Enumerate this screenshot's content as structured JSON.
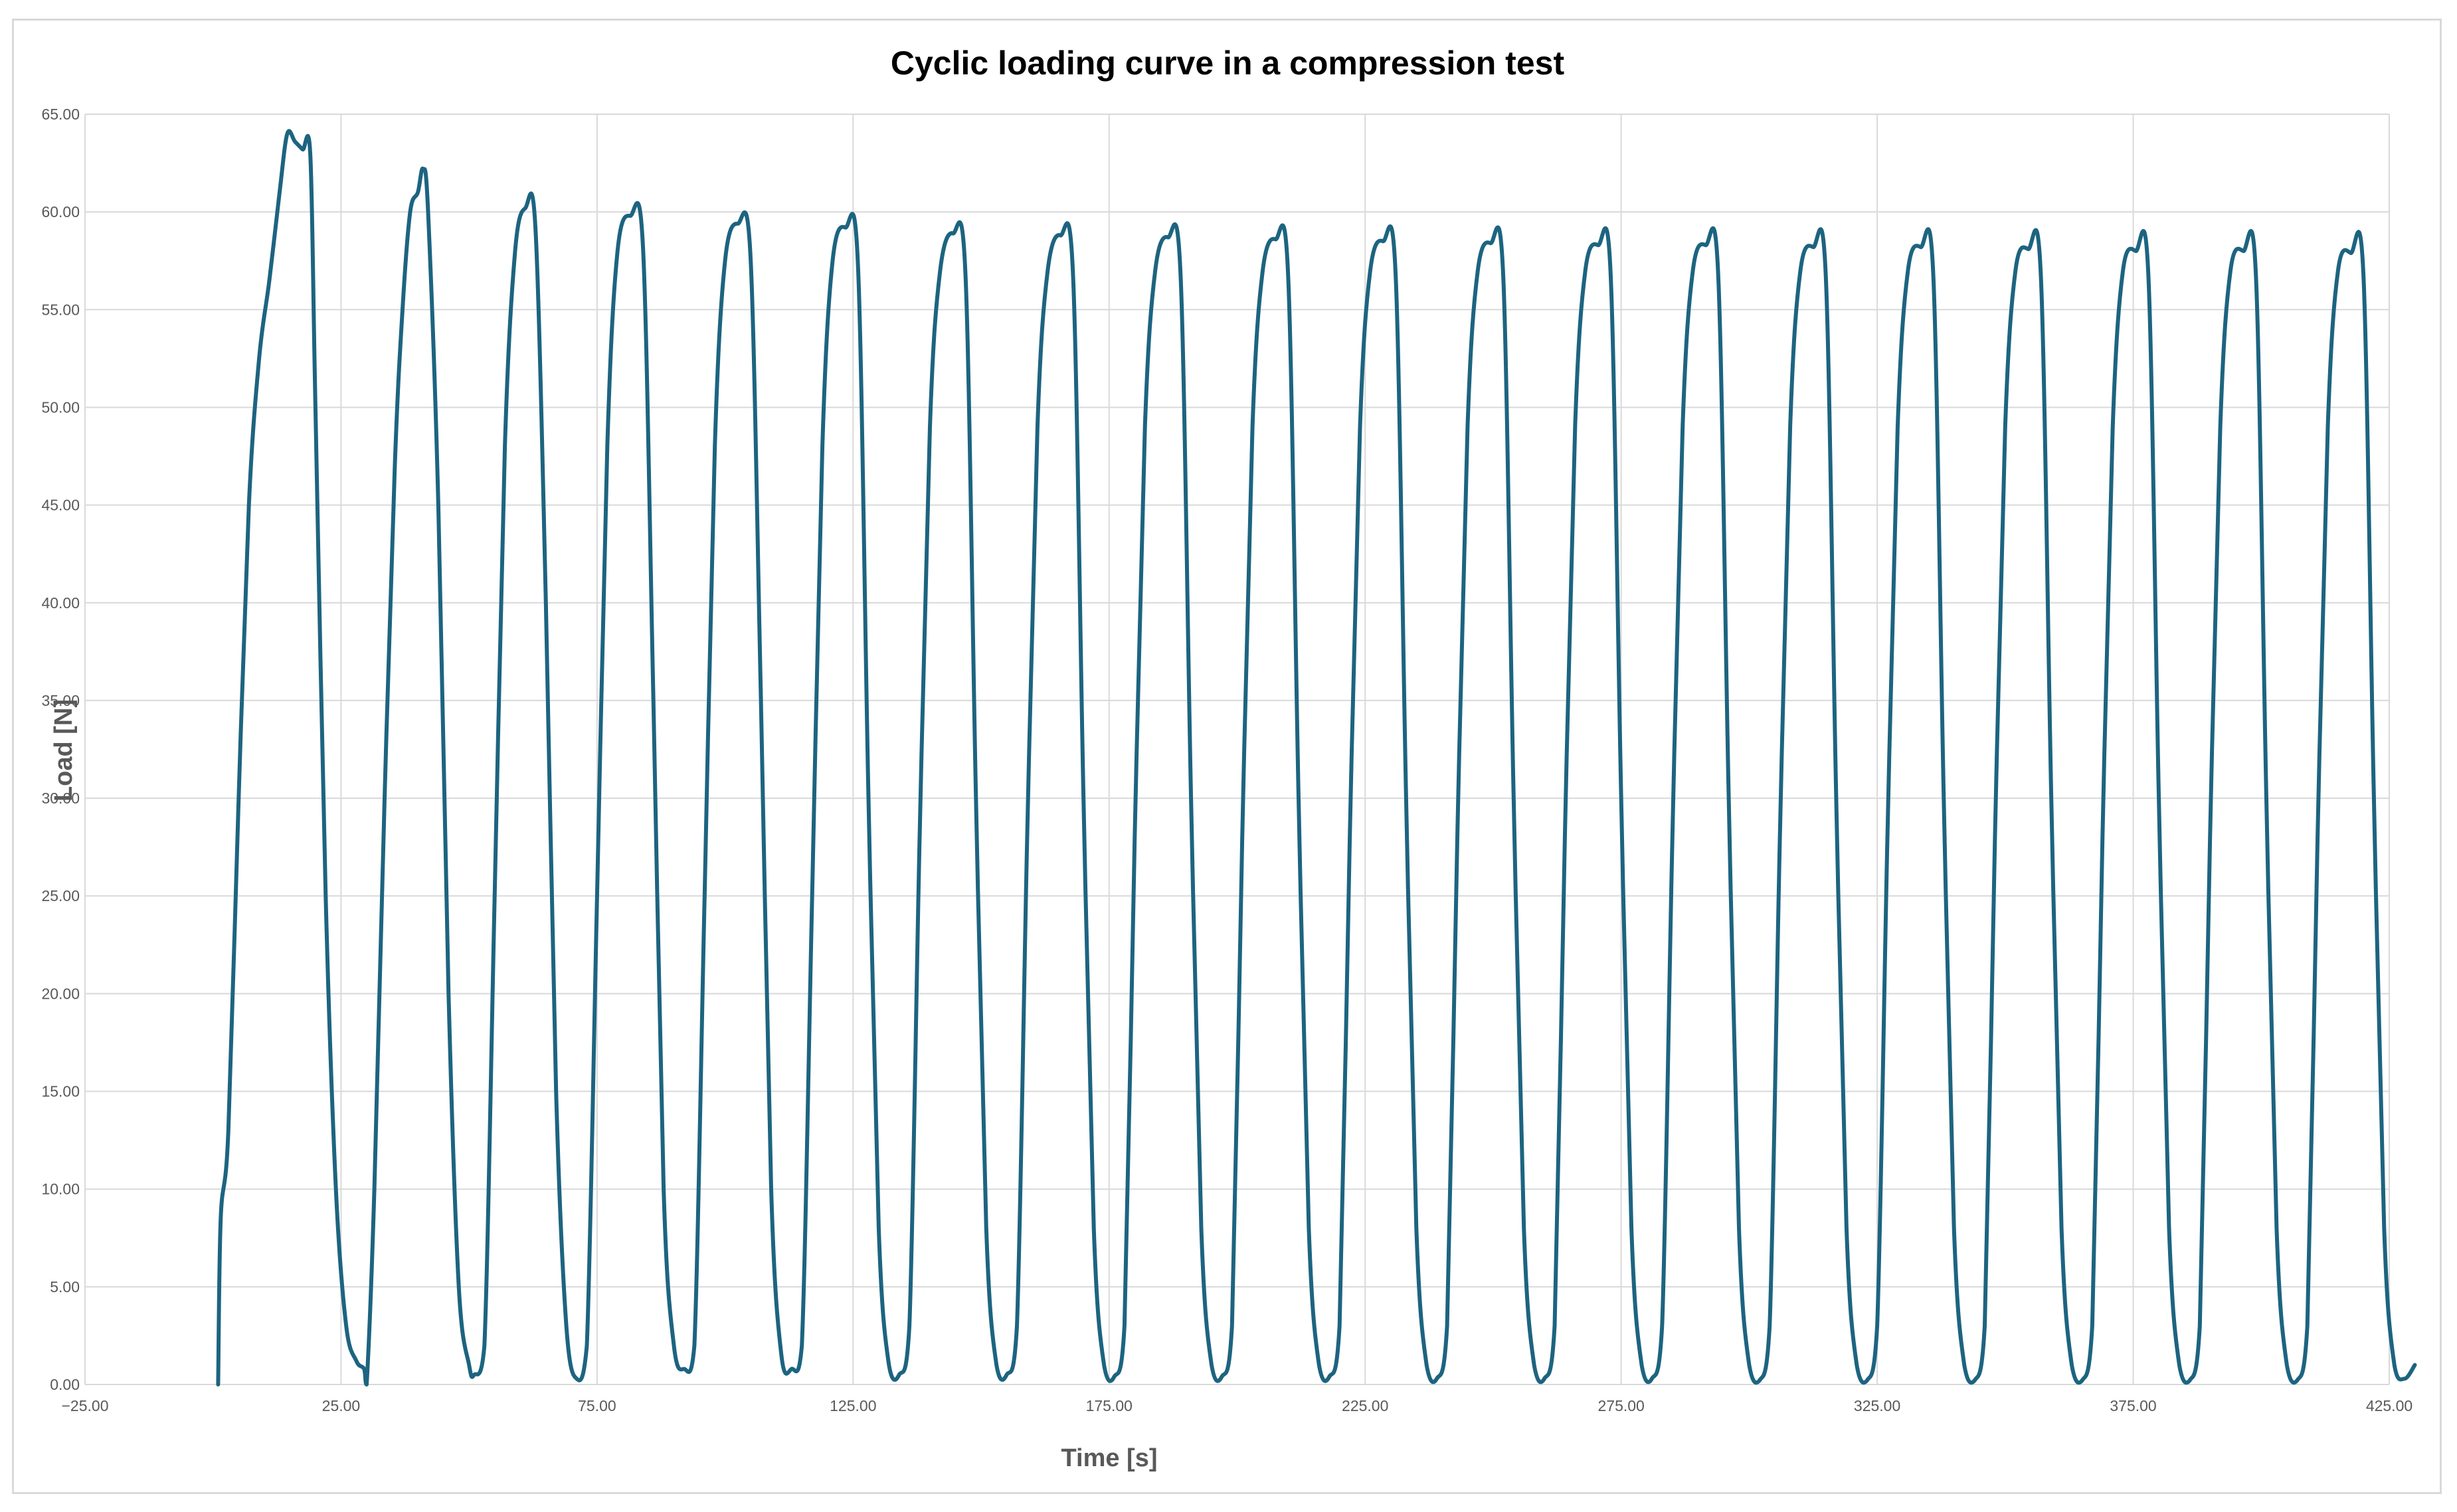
{
  "chart_data": {
    "type": "line",
    "title": "Cyclic loading curve in a compression test",
    "xlabel": "Time [s]",
    "ylabel": "Load [N]",
    "xlim": [
      -25,
      425
    ],
    "ylim": [
      0,
      65
    ],
    "x_ticks": [
      "-25.00",
      "25.00",
      "75.00",
      "125.00",
      "175.00",
      "225.00",
      "275.00",
      "325.00",
      "375.00",
      "425.00"
    ],
    "y_ticks": [
      "0.00",
      "5.00",
      "10.00",
      "15.00",
      "20.00",
      "25.00",
      "30.00",
      "35.00",
      "40.00",
      "45.00",
      "50.00",
      "55.00",
      "60.00",
      "65.00"
    ],
    "grid": true,
    "legend": "none",
    "line_color": "#1d6480",
    "series": [
      {
        "values": [
          [
            1.0,
            0.0
          ],
          [
            1.5,
            8.5
          ],
          [
            3.0,
            13.0
          ],
          [
            5.0,
            30.0
          ],
          [
            7.0,
            45.0
          ],
          [
            9.0,
            52.5
          ],
          [
            11.0,
            56.5
          ],
          [
            13.0,
            61.0
          ],
          [
            14.5,
            64.0
          ],
          [
            16.0,
            63.6
          ],
          [
            17.5,
            63.2
          ],
          [
            19.0,
            62.9
          ],
          [
            20.0,
            50.0
          ],
          [
            22.0,
            25.0
          ],
          [
            24.0,
            10.0
          ],
          [
            26.0,
            3.0
          ],
          [
            28.0,
            1.2
          ],
          [
            29.5,
            0.8
          ],
          [
            30.0,
            0.0
          ],
          [
            31.5,
            10.0
          ],
          [
            33.5,
            30.0
          ],
          [
            35.5,
            47.0
          ],
          [
            37.0,
            55.0
          ],
          [
            38.5,
            60.0
          ],
          [
            40.0,
            61.0
          ],
          [
            41.0,
            62.2
          ],
          [
            42.0,
            60.0
          ],
          [
            44.0,
            45.0
          ],
          [
            46.0,
            20.0
          ],
          [
            48.0,
            5.0
          ],
          [
            50.0,
            1.0
          ],
          [
            51.0,
            0.5
          ],
          [
            53.0,
            2.0
          ],
          [
            55.0,
            25.0
          ],
          [
            57.0,
            48.0
          ],
          [
            59.0,
            58.0
          ],
          [
            61.0,
            60.2
          ],
          [
            63.0,
            59.0
          ],
          [
            65.0,
            40.0
          ],
          [
            67.0,
            15.0
          ],
          [
            69.0,
            3.0
          ],
          [
            71.0,
            0.3
          ],
          [
            73.0,
            2.0
          ],
          [
            75.0,
            25.0
          ],
          [
            77.0,
            48.0
          ],
          [
            79.0,
            58.0
          ],
          [
            81.5,
            59.8
          ],
          [
            84.0,
            58.0
          ],
          [
            86.0,
            35.0
          ],
          [
            88.0,
            10.0
          ],
          [
            90.0,
            2.0
          ],
          [
            92.0,
            0.8
          ],
          [
            94.0,
            2.0
          ],
          [
            96.0,
            25.0
          ],
          [
            98.0,
            48.0
          ],
          [
            100.0,
            57.5
          ],
          [
            102.5,
            59.4
          ],
          [
            105.0,
            57.5
          ],
          [
            107.0,
            35.0
          ],
          [
            109.0,
            10.0
          ],
          [
            111.0,
            1.5
          ],
          [
            113.0,
            0.8
          ],
          [
            115.0,
            2.0
          ],
          [
            117.0,
            25.0
          ],
          [
            119.0,
            48.0
          ],
          [
            121.0,
            57.5
          ],
          [
            123.5,
            59.2
          ],
          [
            126.0,
            57.0
          ],
          [
            128.0,
            30.0
          ],
          [
            130.0,
            8.0
          ],
          [
            132.0,
            1.0
          ],
          [
            134.0,
            0.5
          ],
          [
            136.0,
            3.0
          ],
          [
            138.0,
            28.0
          ],
          [
            140.0,
            49.0
          ],
          [
            142.0,
            57.0
          ],
          [
            144.5,
            58.9
          ],
          [
            147.0,
            56.5
          ],
          [
            149.0,
            30.0
          ],
          [
            151.0,
            8.0
          ],
          [
            153.0,
            1.0
          ],
          [
            155.0,
            0.5
          ],
          [
            157.0,
            3.0
          ],
          [
            159.0,
            28.0
          ],
          [
            161.0,
            49.0
          ],
          [
            163.0,
            57.0
          ],
          [
            165.5,
            58.8
          ],
          [
            168.0,
            56.5
          ],
          [
            170.0,
            30.0
          ],
          [
            172.0,
            8.0
          ],
          [
            174.0,
            1.0
          ],
          [
            176.0,
            0.4
          ],
          [
            178.0,
            3.0
          ],
          [
            180.0,
            28.0
          ],
          [
            182.0,
            49.0
          ],
          [
            184.0,
            57.0
          ],
          [
            186.5,
            58.7
          ],
          [
            189.0,
            56.5
          ],
          [
            191.0,
            30.0
          ],
          [
            193.0,
            8.0
          ],
          [
            195.0,
            1.0
          ],
          [
            197.0,
            0.4
          ],
          [
            199.0,
            3.0
          ],
          [
            201.0,
            28.0
          ],
          [
            203.0,
            49.0
          ],
          [
            205.0,
            57.0
          ],
          [
            207.5,
            58.6
          ],
          [
            210.0,
            56.5
          ],
          [
            212.0,
            30.0
          ],
          [
            214.0,
            8.0
          ],
          [
            216.0,
            1.0
          ],
          [
            218.0,
            0.4
          ],
          [
            220.0,
            3.0
          ],
          [
            222.0,
            28.0
          ],
          [
            224.0,
            49.0
          ],
          [
            226.0,
            57.0
          ],
          [
            228.5,
            58.5
          ],
          [
            231.0,
            56.5
          ],
          [
            233.0,
            30.0
          ],
          [
            235.0,
            8.0
          ],
          [
            237.0,
            1.0
          ],
          [
            239.0,
            0.3
          ],
          [
            241.0,
            3.0
          ],
          [
            243.0,
            28.0
          ],
          [
            245.0,
            49.0
          ],
          [
            247.0,
            57.0
          ],
          [
            249.5,
            58.4
          ],
          [
            252.0,
            56.5
          ],
          [
            254.0,
            30.0
          ],
          [
            256.0,
            8.0
          ],
          [
            258.0,
            1.0
          ],
          [
            260.0,
            0.3
          ],
          [
            262.0,
            3.0
          ],
          [
            264.0,
            28.0
          ],
          [
            266.0,
            49.0
          ],
          [
            268.0,
            57.0
          ],
          [
            270.5,
            58.3
          ],
          [
            273.0,
            56.5
          ],
          [
            275.0,
            30.0
          ],
          [
            277.0,
            8.0
          ],
          [
            279.0,
            1.0
          ],
          [
            281.0,
            0.3
          ],
          [
            283.0,
            3.0
          ],
          [
            285.0,
            28.0
          ],
          [
            287.0,
            49.0
          ],
          [
            289.0,
            57.0
          ],
          [
            291.5,
            58.3
          ],
          [
            294.0,
            56.5
          ],
          [
            296.0,
            30.0
          ],
          [
            298.0,
            8.0
          ],
          [
            300.0,
            1.0
          ],
          [
            302.0,
            0.2
          ],
          [
            304.0,
            3.0
          ],
          [
            306.0,
            28.0
          ],
          [
            308.0,
            49.0
          ],
          [
            310.0,
            57.0
          ],
          [
            312.5,
            58.2
          ],
          [
            315.0,
            56.5
          ],
          [
            317.0,
            30.0
          ],
          [
            319.0,
            8.0
          ],
          [
            321.0,
            1.0
          ],
          [
            323.0,
            0.2
          ],
          [
            325.0,
            3.0
          ],
          [
            327.0,
            28.0
          ],
          [
            329.0,
            49.0
          ],
          [
            331.0,
            57.0
          ],
          [
            333.5,
            58.2
          ],
          [
            336.0,
            56.5
          ],
          [
            338.0,
            30.0
          ],
          [
            340.0,
            8.0
          ],
          [
            342.0,
            1.0
          ],
          [
            344.0,
            0.2
          ],
          [
            346.0,
            3.0
          ],
          [
            348.0,
            28.0
          ],
          [
            350.0,
            49.0
          ],
          [
            352.0,
            57.0
          ],
          [
            354.5,
            58.1
          ],
          [
            357.0,
            56.5
          ],
          [
            359.0,
            30.0
          ],
          [
            361.0,
            8.0
          ],
          [
            363.0,
            1.0
          ],
          [
            365.0,
            0.2
          ],
          [
            367.0,
            3.0
          ],
          [
            369.0,
            28.0
          ],
          [
            371.0,
            49.0
          ],
          [
            373.0,
            57.0
          ],
          [
            375.5,
            58.0
          ],
          [
            378.0,
            56.5
          ],
          [
            380.0,
            30.0
          ],
          [
            382.0,
            8.0
          ],
          [
            384.0,
            1.0
          ],
          [
            386.0,
            0.2
          ],
          [
            388.0,
            3.0
          ],
          [
            390.0,
            28.0
          ],
          [
            392.0,
            49.0
          ],
          [
            394.0,
            57.0
          ],
          [
            396.5,
            58.0
          ],
          [
            399.0,
            56.5
          ],
          [
            401.0,
            30.0
          ],
          [
            403.0,
            8.0
          ],
          [
            405.0,
            1.0
          ],
          [
            407.0,
            0.2
          ],
          [
            409.0,
            3.0
          ],
          [
            411.0,
            28.0
          ],
          [
            413.0,
            49.0
          ],
          [
            415.0,
            57.0
          ],
          [
            417.5,
            57.9
          ],
          [
            420.0,
            56.5
          ],
          [
            422.0,
            30.0
          ],
          [
            424.0,
            8.0
          ],
          [
            426.0,
            1.0
          ],
          [
            428.0,
            0.3
          ],
          [
            430.0,
            1.0
          ]
        ]
      }
    ]
  }
}
